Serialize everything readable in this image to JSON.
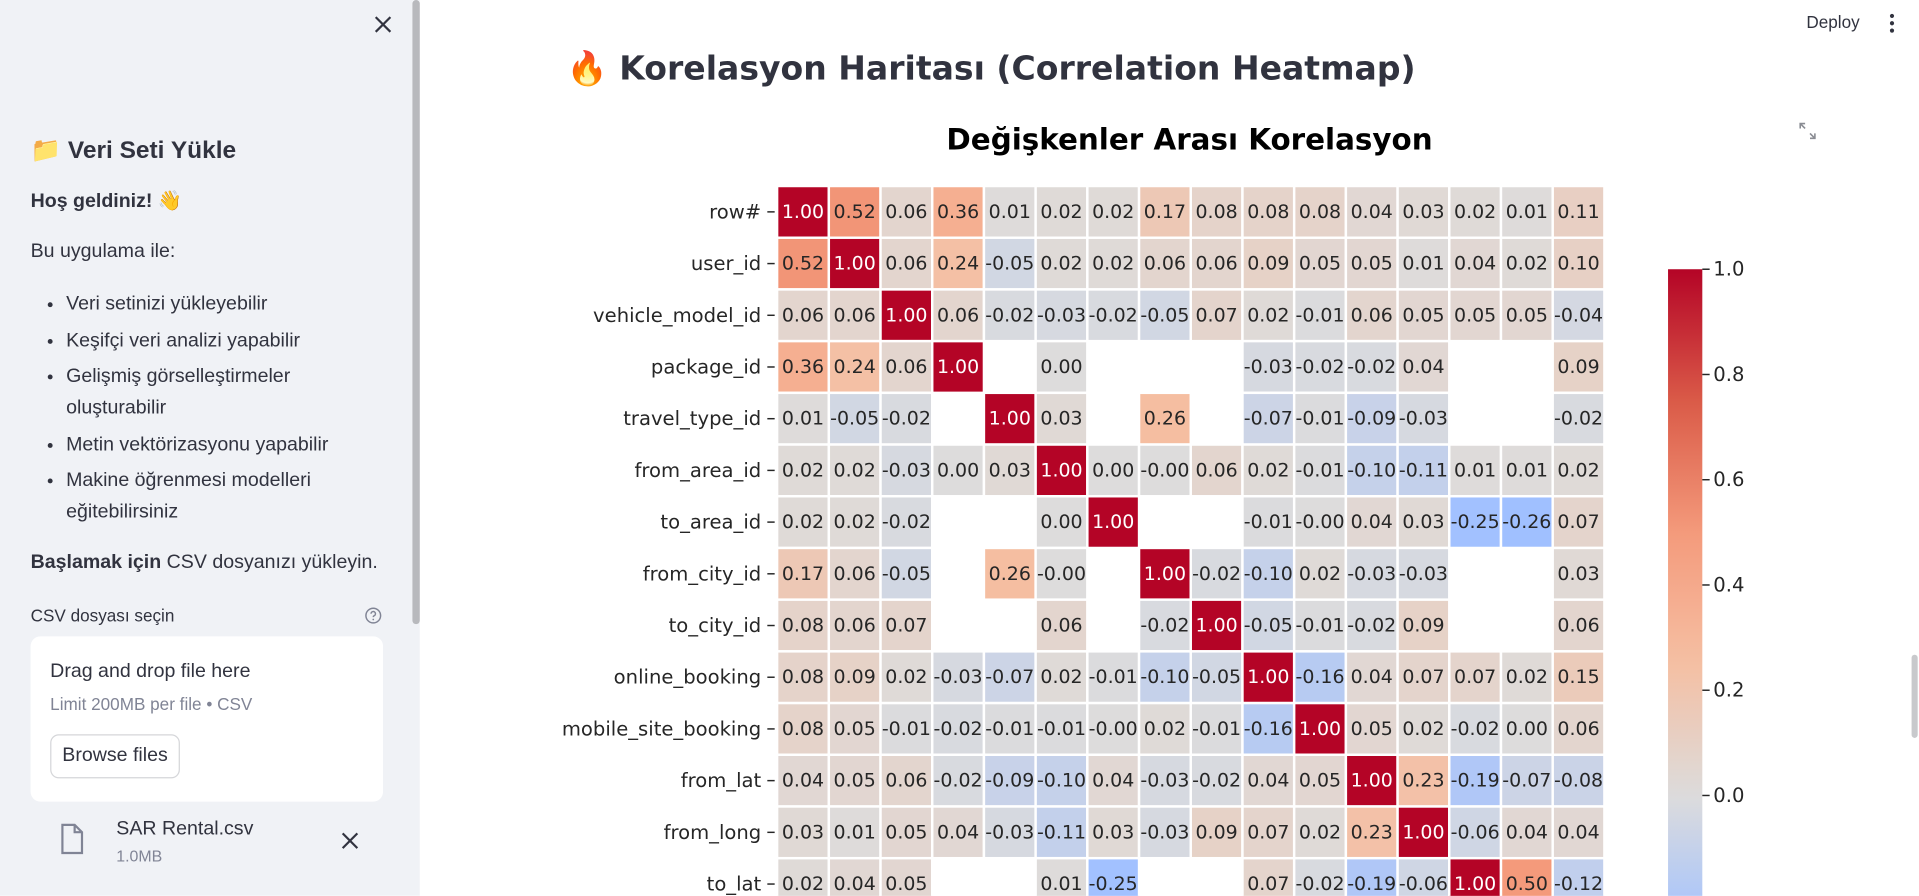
{
  "sidebar": {
    "title": "📁 Veri Seti Yükle",
    "welcome": "Hoş geldiniz! 👋",
    "intro": "Bu uygulama ile:",
    "features": [
      "Veri setinizi yükleyebilir",
      "Keşifçi veri analizi yapabilir",
      "Gelişmiş görselleştirmeler oluşturabilir",
      "Metin vektörizasyonu yapabilir",
      "Makine öğrenmesi modelleri eğitebilirsiniz"
    ],
    "start_bold": "Başlamak için",
    "start_rest": "CSV dosyanızı yükleyin.",
    "uploader_label": "CSV dosyası seçin",
    "dropzone": "Drag and drop file here",
    "limit": "Limit 200MB per file • CSV",
    "browse": "Browse files",
    "file_name": "SAR Rental.csv",
    "file_size": "1.0MB"
  },
  "header": {
    "deploy": "Deploy",
    "title": "🔥 Korelasyon Haritası (Correlation Heatmap)"
  },
  "chart_data": {
    "type": "heatmap",
    "title": "Değişkenler Arası Korelasyon",
    "y_categories": [
      "row#",
      "user_id",
      "vehicle_model_id",
      "package_id",
      "travel_type_id",
      "from_area_id",
      "to_area_id",
      "from_city_id",
      "to_city_id",
      "online_booking",
      "mobile_site_booking",
      "from_lat",
      "from_long",
      "to_lat"
    ],
    "values": [
      [
        1,
        0.52,
        0.06,
        0.36,
        0.01,
        0.02,
        0.02,
        0.17,
        0.08,
        0.08,
        0.08,
        0.04,
        0.03,
        0.02,
        0.01,
        0.11
      ],
      [
        0.52,
        1,
        0.06,
        0.24,
        -0.05,
        0.02,
        0.02,
        0.06,
        0.06,
        0.09,
        0.05,
        0.05,
        0.01,
        0.04,
        0.02,
        0.1
      ],
      [
        0.06,
        0.06,
        1,
        0.06,
        -0.02,
        -0.03,
        -0.02,
        -0.05,
        0.07,
        0.02,
        -0.01,
        0.06,
        0.05,
        0.05,
        0.05,
        -0.04
      ],
      [
        0.36,
        0.24,
        0.06,
        1,
        null,
        0,
        null,
        null,
        null,
        -0.03,
        -0.02,
        -0.02,
        0.04,
        null,
        null,
        0.09
      ],
      [
        0.01,
        -0.05,
        -0.02,
        null,
        1,
        0.03,
        null,
        0.26,
        null,
        -0.07,
        -0.01,
        -0.09,
        -0.03,
        null,
        null,
        -0.02
      ],
      [
        0.02,
        0.02,
        -0.03,
        0,
        0.03,
        1,
        0,
        0,
        0.06,
        0.02,
        -0.01,
        -0.1,
        -0.11,
        0.01,
        0.01,
        0.02
      ],
      [
        0.02,
        0.02,
        -0.02,
        null,
        null,
        0,
        1,
        null,
        null,
        -0.01,
        0,
        0.04,
        0.03,
        -0.25,
        -0.26,
        0.07
      ],
      [
        0.17,
        0.06,
        -0.05,
        null,
        0.26,
        0,
        null,
        1,
        -0.02,
        -0.1,
        0.02,
        -0.03,
        -0.03,
        null,
        null,
        0.03
      ],
      [
        0.08,
        0.06,
        0.07,
        null,
        null,
        0.06,
        null,
        -0.02,
        1,
        -0.05,
        -0.01,
        -0.02,
        0.09,
        null,
        null,
        0.06
      ],
      [
        0.08,
        0.09,
        0.02,
        -0.03,
        -0.07,
        0.02,
        -0.01,
        -0.1,
        -0.05,
        1,
        -0.16,
        0.04,
        0.07,
        0.07,
        0.02,
        0.15
      ],
      [
        0.08,
        0.05,
        -0.01,
        -0.02,
        -0.01,
        -0.01,
        0,
        0.02,
        -0.01,
        -0.16,
        1,
        0.05,
        0.02,
        -0.02,
        0,
        0.06
      ],
      [
        0.04,
        0.05,
        0.06,
        -0.02,
        -0.09,
        -0.1,
        0.04,
        -0.03,
        -0.02,
        0.04,
        0.05,
        1,
        0.23,
        -0.19,
        -0.07,
        -0.08
      ],
      [
        0.03,
        0.01,
        0.05,
        0.04,
        -0.03,
        -0.11,
        0.03,
        -0.03,
        0.09,
        0.07,
        0.02,
        0.23,
        1,
        -0.06,
        0.04,
        0.04
      ],
      [
        0.02,
        0.04,
        0.05,
        null,
        null,
        0.01,
        -0.25,
        null,
        null,
        0.07,
        -0.02,
        -0.19,
        -0.06,
        1,
        0.5,
        -0.12
      ]
    ],
    "value_labels": [
      [
        "1.00",
        "0.52",
        "0.06",
        "0.36",
        "0.01",
        "0.02",
        "0.02",
        "0.17",
        "0.08",
        "0.08",
        "0.08",
        "0.04",
        "0.03",
        "0.02",
        "0.01",
        "0.11"
      ],
      [
        "0.52",
        "1.00",
        "0.06",
        "0.24",
        "-0.05",
        "0.02",
        "0.02",
        "0.06",
        "0.06",
        "0.09",
        "0.05",
        "0.05",
        "0.01",
        "0.04",
        "0.02",
        "0.10"
      ],
      [
        "0.06",
        "0.06",
        "1.00",
        "0.06",
        "-0.02",
        "-0.03",
        "-0.02",
        "-0.05",
        "0.07",
        "0.02",
        "-0.01",
        "0.06",
        "0.05",
        "0.05",
        "0.05",
        "-0.04"
      ],
      [
        "0.36",
        "0.24",
        "0.06",
        "1.00",
        null,
        "0.00",
        null,
        null,
        null,
        "-0.03",
        "-0.02",
        "-0.02",
        "0.04",
        null,
        null,
        "0.09"
      ],
      [
        "0.01",
        "-0.05",
        "-0.02",
        null,
        "1.00",
        "0.03",
        null,
        "0.26",
        null,
        "-0.07",
        "-0.01",
        "-0.09",
        "-0.03",
        null,
        null,
        "-0.02"
      ],
      [
        "0.02",
        "0.02",
        "-0.03",
        "0.00",
        "0.03",
        "1.00",
        "0.00",
        "-0.00",
        "0.06",
        "0.02",
        "-0.01",
        "-0.10",
        "-0.11",
        "0.01",
        "0.01",
        "0.02"
      ],
      [
        "0.02",
        "0.02",
        "-0.02",
        null,
        null,
        "0.00",
        "1.00",
        null,
        null,
        "-0.01",
        "-0.00",
        "0.04",
        "0.03",
        "-0.25",
        "-0.26",
        "0.07"
      ],
      [
        "0.17",
        "0.06",
        "-0.05",
        null,
        "0.26",
        "-0.00",
        null,
        "1.00",
        "-0.02",
        "-0.10",
        "0.02",
        "-0.03",
        "-0.03",
        null,
        null,
        "0.03"
      ],
      [
        "0.08",
        "0.06",
        "0.07",
        null,
        null,
        "0.06",
        null,
        "-0.02",
        "1.00",
        "-0.05",
        "-0.01",
        "-0.02",
        "0.09",
        null,
        null,
        "0.06"
      ],
      [
        "0.08",
        "0.09",
        "0.02",
        "-0.03",
        "-0.07",
        "0.02",
        "-0.01",
        "-0.10",
        "-0.05",
        "1.00",
        "-0.16",
        "0.04",
        "0.07",
        "0.07",
        "0.02",
        "0.15"
      ],
      [
        "0.08",
        "0.05",
        "-0.01",
        "-0.02",
        "-0.01",
        "-0.01",
        "-0.00",
        "0.02",
        "-0.01",
        "-0.16",
        "1.00",
        "0.05",
        "0.02",
        "-0.02",
        "0.00",
        "0.06"
      ],
      [
        "0.04",
        "0.05",
        "0.06",
        "-0.02",
        "-0.09",
        "-0.10",
        "0.04",
        "-0.03",
        "-0.02",
        "0.04",
        "0.05",
        "1.00",
        "0.23",
        "-0.19",
        "-0.07",
        "-0.08"
      ],
      [
        "0.03",
        "0.01",
        "0.05",
        "0.04",
        "-0.03",
        "-0.11",
        "0.03",
        "-0.03",
        "0.09",
        "0.07",
        "0.02",
        "0.23",
        "1.00",
        "-0.06",
        "0.04",
        "0.04"
      ],
      [
        "0.02",
        "0.04",
        "0.05",
        null,
        null,
        "0.01",
        "-0.25",
        null,
        null,
        "0.07",
        "-0.02",
        "-0.19",
        "-0.06",
        "1.00",
        "0.50",
        "-0.12"
      ]
    ],
    "colormap": "coolwarm",
    "center": 0,
    "clim": [
      -0.26,
      1
    ],
    "cticks": [
      {
        "value": 1,
        "label": "1.0"
      },
      0.8,
      0.6,
      0.4,
      0.2,
      {
        "value": 0,
        "label": "0.0"
      }
    ]
  }
}
